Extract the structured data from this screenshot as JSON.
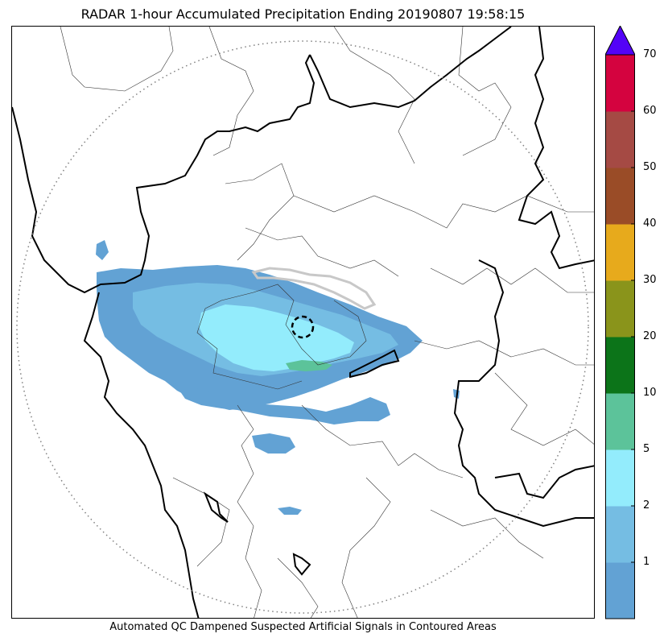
{
  "title": "RADAR 1-hour Accumulated Precipitation Ending 20190807 19:58:15",
  "caption": "Automated QC Dampened Suspected Artificial Signals in Contoured Areas",
  "colorbar": {
    "labels": [
      "1",
      "2",
      "5",
      "10",
      "20",
      "30",
      "40",
      "50",
      "60",
      "70"
    ],
    "bins": [
      {
        "lower": "0",
        "upper": "1",
        "color": "#62a2d4"
      },
      {
        "lower": "1",
        "upper": "2",
        "color": "#75bde3"
      },
      {
        "lower": "2",
        "upper": "5",
        "color": "#93ecfc"
      },
      {
        "lower": "5",
        "upper": "10",
        "color": "#5cc39a"
      },
      {
        "lower": "10",
        "upper": "20",
        "color": "#0c7419"
      },
      {
        "lower": "20",
        "upper": "30",
        "color": "#8a941b"
      },
      {
        "lower": "30",
        "upper": "40",
        "color": "#e7aa1c"
      },
      {
        "lower": "40",
        "upper": "50",
        "color": "#9a4c27"
      },
      {
        "lower": "50",
        "upper": "60",
        "color": "#a54a44"
      },
      {
        "lower": "60",
        "upper": "70",
        "color": "#d4033f"
      }
    ],
    "extend_max_color": "#5303f7"
  },
  "map": {
    "radar_range_ring": "dotted",
    "qc_contour_color": "#c8c8c8"
  }
}
